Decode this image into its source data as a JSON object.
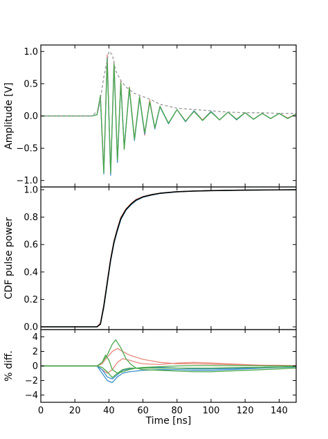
{
  "chart_data": [
    {
      "type": "line",
      "ylabel": "Amplitude [V]",
      "xlabel": "",
      "xlim": [
        0,
        150
      ],
      "ylim": [
        -1.1,
        1.1
      ],
      "yticks": [
        -1.0,
        -0.5,
        0.0,
        0.5,
        1.0
      ],
      "ytick_labels": [
        "−1.0",
        "−0.5",
        "0.0",
        "0.5",
        "1.0"
      ],
      "grid": false,
      "series": [
        {
          "color": "#e8897a",
          "x": [
            0,
            30,
            33,
            35,
            37,
            39,
            41,
            43,
            45,
            47,
            49,
            52,
            55,
            58,
            61,
            64,
            67,
            70,
            75,
            80,
            85,
            90,
            95,
            100,
            105,
            110,
            115,
            120,
            125,
            130,
            135,
            140,
            145,
            150
          ],
          "y": [
            0,
            0,
            0.02,
            0.3,
            -0.85,
            0.95,
            -0.9,
            0.85,
            -0.7,
            0.55,
            -0.5,
            0.45,
            -0.35,
            0.3,
            -0.3,
            0.25,
            -0.2,
            0.15,
            -0.12,
            0.1,
            -0.08,
            0.08,
            -0.06,
            0.07,
            -0.06,
            0.06,
            -0.05,
            0.05,
            -0.05,
            0.04,
            -0.04,
            0.04,
            -0.03,
            0.03
          ]
        },
        {
          "color": "#3a8fc7",
          "x": [
            0,
            30,
            33,
            35,
            37,
            39,
            41,
            43,
            45,
            47,
            49,
            52,
            55,
            58,
            61,
            64,
            67,
            70,
            75,
            80,
            85,
            90,
            95,
            100,
            105,
            110,
            115,
            120,
            125,
            130,
            135,
            140,
            145,
            150
          ],
          "y": [
            0,
            0,
            0.02,
            0.28,
            -0.9,
            0.9,
            -0.92,
            0.8,
            -0.72,
            0.5,
            -0.48,
            0.42,
            -0.38,
            0.28,
            -0.28,
            0.22,
            -0.2,
            0.14,
            -0.12,
            0.1,
            -0.09,
            0.08,
            -0.07,
            0.07,
            -0.06,
            0.06,
            -0.06,
            0.05,
            -0.05,
            0.04,
            -0.04,
            0.04,
            -0.04,
            0.03
          ]
        },
        {
          "color": "#4aa84a",
          "x": [
            0,
            30,
            33,
            35,
            37,
            39,
            41,
            43,
            45,
            47,
            49,
            52,
            55,
            58,
            61,
            64,
            67,
            70,
            75,
            80,
            85,
            90,
            95,
            100,
            105,
            110,
            115,
            120,
            125,
            130,
            135,
            140,
            145,
            150
          ],
          "y": [
            0,
            0,
            0.02,
            0.32,
            -0.88,
            0.88,
            -0.88,
            0.82,
            -0.68,
            0.52,
            -0.52,
            0.44,
            -0.36,
            0.3,
            -0.26,
            0.22,
            -0.18,
            0.15,
            -0.11,
            0.1,
            -0.08,
            0.07,
            -0.07,
            0.06,
            -0.06,
            0.06,
            -0.05,
            0.05,
            -0.05,
            0.04,
            -0.04,
            0.04,
            -0.04,
            0.03
          ]
        },
        {
          "color": "#999999",
          "dash": true,
          "x": [
            0,
            30,
            34,
            37,
            40,
            42,
            44,
            47,
            50,
            55,
            60,
            65,
            70,
            80,
            90,
            100,
            110,
            120,
            130,
            140,
            150
          ],
          "y": [
            0,
            0,
            0.1,
            0.6,
            1.0,
            0.95,
            0.7,
            0.55,
            0.45,
            0.35,
            0.3,
            0.25,
            0.18,
            0.12,
            0.1,
            0.08,
            0.06,
            0.05,
            0.05,
            0.04,
            0.04
          ]
        }
      ]
    },
    {
      "type": "line",
      "ylabel": "CDF pulse power",
      "xlabel": "",
      "xlim": [
        0,
        150
      ],
      "ylim": [
        -0.02,
        1.02
      ],
      "yticks": [
        0.0,
        0.2,
        0.4,
        0.6,
        0.8,
        1.0
      ],
      "ytick_labels": [
        "0.0",
        "0.2",
        "0.4",
        "0.6",
        "0.8",
        "1.0"
      ],
      "grid": false,
      "series": [
        {
          "color": "#e8897a",
          "x": [
            0,
            33,
            35,
            37,
            39,
            41,
            43,
            45,
            47,
            50,
            53,
            56,
            60,
            65,
            70,
            80,
            90,
            100,
            120,
            150
          ],
          "y": [
            0,
            0,
            0.03,
            0.16,
            0.33,
            0.5,
            0.63,
            0.72,
            0.8,
            0.86,
            0.9,
            0.93,
            0.95,
            0.965,
            0.975,
            0.985,
            0.99,
            0.993,
            0.997,
            1.0
          ]
        },
        {
          "color": "#3a8fc7",
          "x": [
            0,
            33,
            35,
            37,
            39,
            41,
            43,
            45,
            47,
            50,
            53,
            56,
            60,
            65,
            70,
            80,
            90,
            100,
            120,
            150
          ],
          "y": [
            0,
            0,
            0.02,
            0.14,
            0.31,
            0.48,
            0.61,
            0.7,
            0.78,
            0.85,
            0.89,
            0.92,
            0.945,
            0.96,
            0.972,
            0.984,
            0.99,
            0.993,
            0.997,
            1.0
          ]
        },
        {
          "color": "#4aa84a",
          "x": [
            0,
            33,
            35,
            37,
            39,
            41,
            43,
            45,
            47,
            50,
            53,
            56,
            60,
            65,
            70,
            80,
            90,
            100,
            120,
            150
          ],
          "y": [
            0,
            0,
            0.02,
            0.15,
            0.32,
            0.49,
            0.62,
            0.71,
            0.79,
            0.855,
            0.895,
            0.925,
            0.948,
            0.963,
            0.974,
            0.985,
            0.99,
            0.993,
            0.997,
            1.0
          ]
        },
        {
          "color": "#000000",
          "x": [
            0,
            33,
            35,
            37,
            39,
            41,
            43,
            45,
            47,
            50,
            53,
            56,
            60,
            65,
            70,
            80,
            90,
            100,
            120,
            150
          ],
          "y": [
            0,
            0,
            0.02,
            0.15,
            0.32,
            0.49,
            0.62,
            0.71,
            0.79,
            0.855,
            0.895,
            0.925,
            0.948,
            0.963,
            0.974,
            0.985,
            0.99,
            0.993,
            0.997,
            1.0
          ]
        }
      ]
    },
    {
      "type": "line",
      "ylabel": "% diff.",
      "xlabel": "Time [ns]",
      "xlim": [
        0,
        150
      ],
      "xticks": [
        0,
        20,
        40,
        60,
        80,
        100,
        120,
        140
      ],
      "ylim": [
        -5,
        5
      ],
      "yticks": [
        -4,
        -2,
        0,
        2,
        4
      ],
      "ytick_labels": [
        "−4",
        "−2",
        "0",
        "2",
        "4"
      ],
      "grid": false,
      "series": [
        {
          "color": "#e8897a",
          "x": [
            0,
            33,
            36,
            39,
            42,
            45,
            48,
            52,
            56,
            60,
            65,
            70,
            75,
            80,
            90,
            100,
            110,
            120,
            130,
            140,
            150
          ],
          "y": [
            0,
            0,
            0.3,
            1.2,
            2.0,
            2.4,
            2.0,
            1.5,
            1.2,
            0.9,
            0.7,
            0.5,
            0.4,
            0.3,
            0.3,
            0.25,
            0.2,
            0.15,
            0.1,
            0.1,
            0.05
          ]
        },
        {
          "color": "#e8897a",
          "x": [
            0,
            33,
            36,
            39,
            42,
            45,
            48,
            52,
            56,
            60,
            70,
            80,
            90,
            100,
            110,
            120,
            130,
            140,
            150
          ],
          "y": [
            0,
            0,
            -0.5,
            -1.0,
            -0.5,
            0.5,
            1.0,
            0.8,
            0.5,
            0.3,
            0.2,
            0.4,
            0.5,
            0.4,
            0.3,
            0.2,
            0.1,
            0.05,
            0
          ]
        },
        {
          "color": "#3a8fc7",
          "x": [
            0,
            33,
            36,
            39,
            42,
            45,
            48,
            52,
            56,
            60,
            70,
            80,
            90,
            100,
            110,
            120,
            130,
            140,
            150
          ],
          "y": [
            0,
            0,
            -1.0,
            -2.0,
            -2.3,
            -1.5,
            -1.0,
            -0.8,
            -0.7,
            -0.6,
            -0.5,
            -0.5,
            -0.6,
            -0.6,
            -0.5,
            -0.4,
            -0.3,
            -0.2,
            -0.15
          ]
        },
        {
          "color": "#3a8fc7",
          "x": [
            0,
            33,
            36,
            39,
            42,
            45,
            48,
            52,
            56,
            60,
            70,
            80,
            90,
            100,
            110,
            120,
            130,
            140,
            150
          ],
          "y": [
            0,
            0,
            -0.5,
            -1.5,
            -1.8,
            -1.2,
            -0.6,
            -0.4,
            -0.3,
            -0.3,
            -0.2,
            -0.3,
            -0.4,
            -0.4,
            -0.35,
            -0.3,
            -0.2,
            -0.15,
            -0.1
          ]
        },
        {
          "color": "#4aa84a",
          "x": [
            0,
            33,
            36,
            39,
            42,
            44,
            47,
            50,
            53,
            56,
            60,
            70,
            80,
            90,
            100,
            110,
            120,
            130,
            140,
            150
          ],
          "y": [
            0,
            0,
            0.5,
            1.5,
            3.0,
            3.6,
            2.5,
            1.0,
            0.2,
            -0.3,
            -0.5,
            -0.6,
            -0.7,
            -0.8,
            -0.8,
            -0.7,
            -0.6,
            -0.5,
            -0.4,
            -0.3
          ]
        },
        {
          "color": "#4aa84a",
          "x": [
            0,
            33,
            36,
            39,
            42,
            45,
            48,
            52,
            56,
            60,
            70,
            80,
            90,
            100,
            110,
            120,
            130,
            140,
            150
          ],
          "y": [
            0,
            0,
            -0.2,
            -0.8,
            -1.6,
            -1.0,
            -0.5,
            -0.3,
            -0.3,
            -0.3,
            -0.3,
            -0.3,
            -0.3,
            -0.3,
            -0.25,
            -0.2,
            -0.2,
            -0.15,
            -0.1
          ]
        },
        {
          "color": "#4aa84a",
          "x": [
            0,
            33,
            36,
            38,
            40,
            42,
            45,
            48,
            52,
            56,
            60,
            70,
            80,
            90,
            100,
            110,
            120,
            130,
            140,
            150
          ],
          "y": [
            0,
            0,
            0.5,
            1.5,
            0.8,
            -0.5,
            -1.0,
            -0.8,
            -0.5,
            -0.3,
            -0.2,
            -0.1,
            0,
            0.05,
            0.05,
            0.05,
            0.05,
            0,
            0,
            0
          ]
        }
      ]
    }
  ]
}
